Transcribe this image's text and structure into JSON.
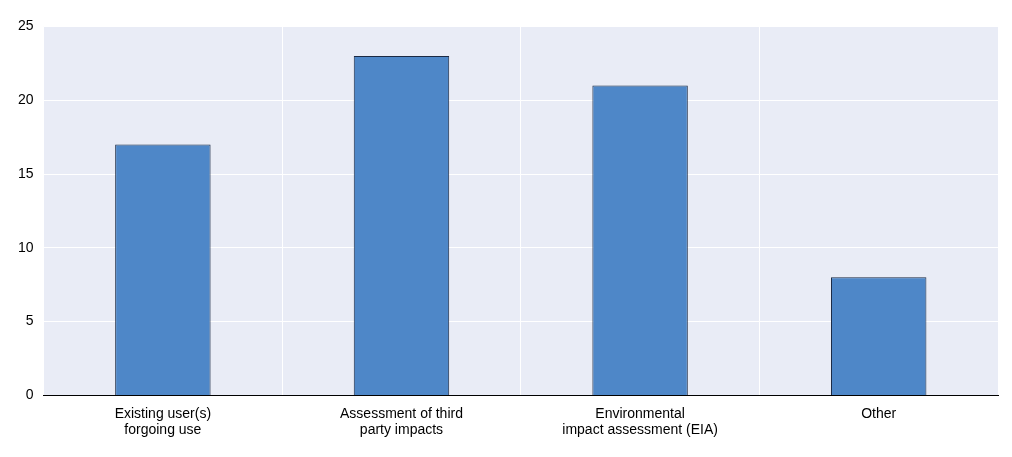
{
  "chart_data": {
    "type": "bar",
    "categories": [
      "Existing user(s)\nforgoing use",
      "Assessment of third\nparty impacts",
      "Environmental\nimpact assessment (EIA)",
      "Other"
    ],
    "values": [
      17,
      23,
      21,
      8
    ],
    "color": "#4e87c8",
    "ylim": [
      0,
      25
    ],
    "yticks": [
      0,
      5,
      10,
      15,
      20,
      25
    ],
    "grid": true,
    "legend": false
  }
}
